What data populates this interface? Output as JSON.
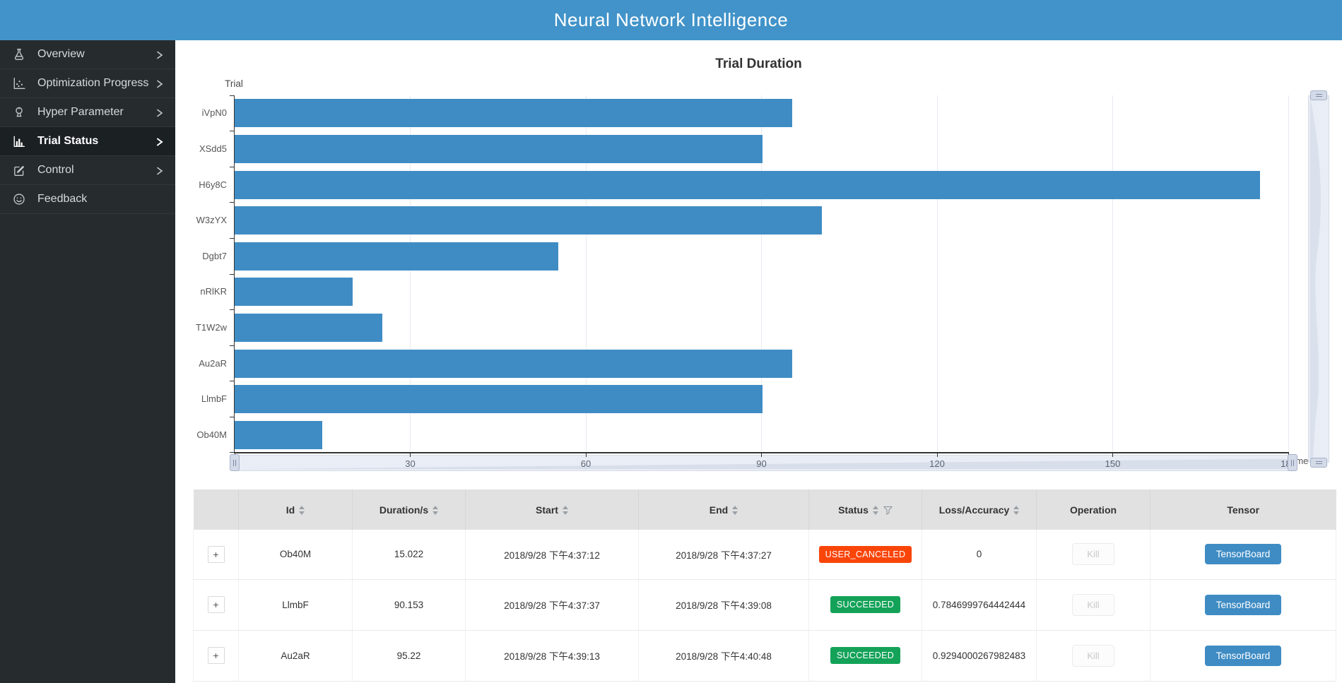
{
  "header": {
    "title": "Neural Network Intelligence"
  },
  "sidebar": {
    "items": [
      {
        "label": "Overview",
        "icon": "flask-icon",
        "has_chevron": true,
        "active": false
      },
      {
        "label": "Optimization Progress",
        "icon": "scatter-plot-icon",
        "has_chevron": true,
        "active": false
      },
      {
        "label": "Hyper Parameter",
        "icon": "rocket-icon",
        "has_chevron": true,
        "active": false
      },
      {
        "label": "Trial Status",
        "icon": "bar-chart-icon",
        "has_chevron": true,
        "active": true
      },
      {
        "label": "Control",
        "icon": "edit-icon",
        "has_chevron": true,
        "active": false
      },
      {
        "label": "Feedback",
        "icon": "smiley-icon",
        "has_chevron": false,
        "active": false
      }
    ]
  },
  "chart_data": {
    "type": "bar",
    "orientation": "horizontal",
    "title": "Trial Duration",
    "ylabel": "Trial",
    "xlabel": "Time",
    "categories": [
      "iVpN0",
      "XSdd5",
      "H6y8C",
      "W3zYX",
      "Dgbt7",
      "nRlKR",
      "T1W2w",
      "Au2aR",
      "LlmbF",
      "Ob40M"
    ],
    "values": [
      95.3,
      90.2,
      175.2,
      100.3,
      55.3,
      20.2,
      25.2,
      95.22,
      90.153,
      15.022
    ],
    "xlim": [
      0,
      180
    ],
    "x_ticks": [
      0,
      30,
      60,
      90,
      120,
      150,
      180
    ],
    "grid": "vertical-gridlines-on",
    "legend": "none",
    "bar_color": "#3f8cc4",
    "has_x_datazoom_slider": true,
    "has_y_datazoom_slider": true
  },
  "table": {
    "columns": [
      {
        "label": "",
        "sortable": false,
        "filterable": false
      },
      {
        "label": "Id",
        "sortable": true,
        "filterable": false
      },
      {
        "label": "Duration/s",
        "sortable": true,
        "filterable": false
      },
      {
        "label": "Start",
        "sortable": true,
        "filterable": false
      },
      {
        "label": "End",
        "sortable": true,
        "filterable": false
      },
      {
        "label": "Status",
        "sortable": true,
        "filterable": true
      },
      {
        "label": "Loss/Accuracy",
        "sortable": true,
        "filterable": false
      },
      {
        "label": "Operation",
        "sortable": false,
        "filterable": false
      },
      {
        "label": "Tensor",
        "sortable": false,
        "filterable": false
      }
    ],
    "expand_label": "+",
    "kill_label": "Kill",
    "tensorboard_label": "TensorBoard",
    "rows": [
      {
        "id": "Ob40M",
        "duration": "15.022",
        "start": "2018/9/28 下午4:37:12",
        "end": "2018/9/28 下午4:37:27",
        "status": "USER_CANCELED",
        "status_color": "#fa4509",
        "loss_accuracy": "0"
      },
      {
        "id": "LlmbF",
        "duration": "90.153",
        "start": "2018/9/28 下午4:37:37",
        "end": "2018/9/28 下午4:39:08",
        "status": "SUCCEEDED",
        "status_color": "#14a259",
        "loss_accuracy": "0.7846999764442444"
      },
      {
        "id": "Au2aR",
        "duration": "95.22",
        "start": "2018/9/28 下午4:39:13",
        "end": "2018/9/28 下午4:40:48",
        "status": "SUCCEEDED",
        "status_color": "#14a259",
        "loss_accuracy": "0.9294000267982483"
      }
    ]
  },
  "colors": {
    "header_blue": "#4193c9",
    "bar_blue": "#3f8cc4",
    "success_green": "#14a259",
    "canceled_orange": "#fa4509",
    "sidebar_bg": "#262b2e",
    "sidebar_active_bg": "#1b2023"
  }
}
